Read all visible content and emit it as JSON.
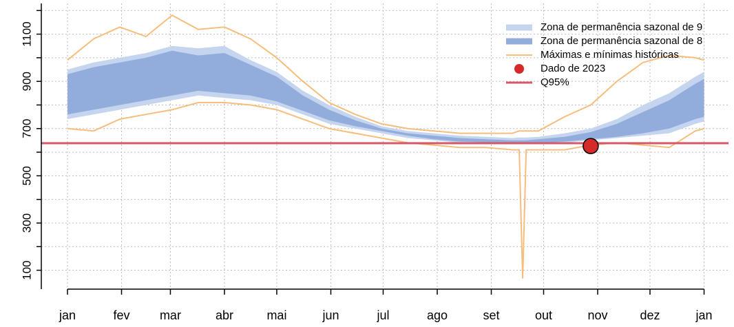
{
  "chart_data": {
    "type": "seasonal-band",
    "x": [
      0,
      15,
      30,
      45,
      60,
      75,
      90,
      105,
      120,
      135,
      150,
      165,
      180,
      195,
      210,
      225,
      240,
      255,
      259,
      261,
      263,
      270,
      285,
      300,
      315,
      330,
      345,
      360,
      365
    ],
    "xlim": [
      -15,
      379
    ],
    "xticks": [
      {
        "value": 0,
        "label": "jan"
      },
      {
        "value": 31,
        "label": "fev"
      },
      {
        "value": 59,
        "label": "mar"
      },
      {
        "value": 90,
        "label": "abr"
      },
      {
        "value": 120,
        "label": "mai"
      },
      {
        "value": 151,
        "label": "jun"
      },
      {
        "value": 181,
        "label": "jul"
      },
      {
        "value": 212,
        "label": "ago"
      },
      {
        "value": 243,
        "label": "set"
      },
      {
        "value": 273,
        "label": "out"
      },
      {
        "value": 304,
        "label": "nov"
      },
      {
        "value": 334,
        "label": "dez"
      },
      {
        "value": 365,
        "label": "jan"
      }
    ],
    "ylim": [
      20,
      1230
    ],
    "yticks": [
      100,
      300,
      500,
      700,
      900,
      1100
    ],
    "minor_yticks": [
      200,
      400,
      600,
      800,
      1000,
      1200
    ],
    "grid": true,
    "bands": [
      {
        "name": "Zona de permanência sazonal de 9",
        "color": "#c5d5ef",
        "upper": [
          950,
          980,
          1000,
          1020,
          1050,
          1040,
          1050,
          990,
          940,
          860,
          800,
          750,
          710,
          690,
          680,
          670,
          665,
          660,
          662,
          662,
          662,
          665,
          680,
          700,
          740,
          800,
          850,
          920,
          940
        ],
        "lower": [
          740,
          760,
          780,
          800,
          820,
          840,
          830,
          820,
          800,
          760,
          720,
          700,
          680,
          660,
          650,
          640,
          640,
          635,
          635,
          635,
          635,
          635,
          640,
          650,
          660,
          670,
          680,
          720,
          730
        ]
      },
      {
        "name": "Zona de permanência sazonal de 8",
        "color": "#92acdc",
        "upper": [
          930,
          960,
          980,
          1000,
          1030,
          1010,
          1020,
          970,
          920,
          840,
          780,
          735,
          700,
          680,
          670,
          660,
          655,
          650,
          650,
          650,
          650,
          655,
          665,
          685,
          720,
          770,
          820,
          890,
          910
        ],
        "lower": [
          760,
          780,
          800,
          820,
          840,
          860,
          850,
          840,
          815,
          775,
          735,
          710,
          690,
          670,
          655,
          645,
          642,
          638,
          638,
          638,
          638,
          638,
          645,
          655,
          665,
          680,
          700,
          740,
          750
        ]
      }
    ],
    "series": [
      {
        "name": "Máximas e mínimas históricas",
        "color": "#f6bd7c",
        "values": [
          990,
          1080,
          1130,
          1090,
          1180,
          1120,
          1130,
          1080,
          1000,
          900,
          810,
          760,
          720,
          700,
          690,
          680,
          680,
          680,
          690,
          690,
          690,
          690,
          750,
          800,
          900,
          980,
          1010,
          1000,
          990
        ]
      },
      {
        "color": "#f6bd7c",
        "values": [
          700,
          690,
          740,
          760,
          780,
          810,
          810,
          800,
          780,
          740,
          700,
          680,
          660,
          640,
          630,
          620,
          620,
          610,
          610,
          65,
          610,
          610,
          610,
          630,
          640,
          630,
          620,
          690,
          700
        ]
      }
    ],
    "points": [
      {
        "name": "Dado de 2023",
        "color": "#d62a2a",
        "x": 300,
        "y": 626
      }
    ],
    "hlines": [
      {
        "name": "Q95%",
        "color": "#d45868",
        "y": 638
      }
    ],
    "legend": "top-right"
  }
}
